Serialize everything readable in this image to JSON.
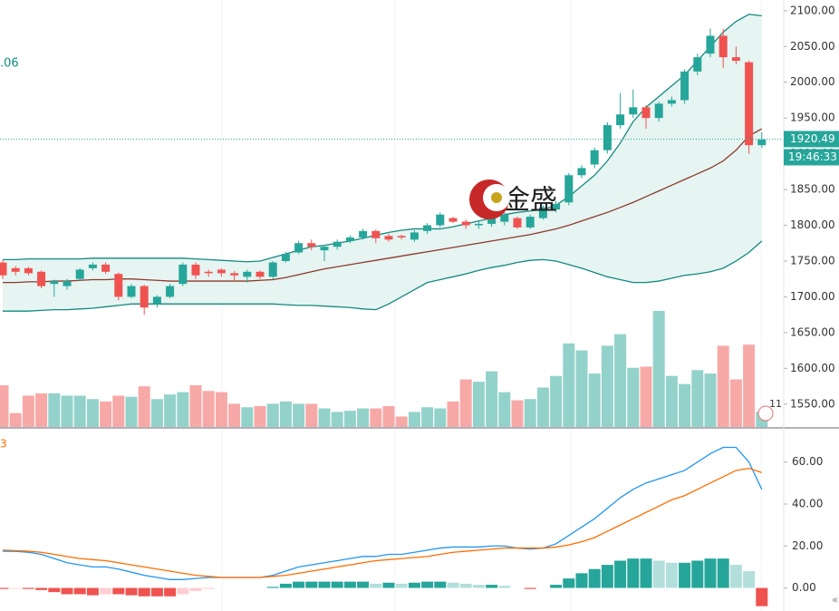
{
  "watermark": "金盛",
  "badge": "11",
  "chart_data": [
    {
      "type": "candlestick",
      "indicator_value": ".06",
      "ylim": [
        1518,
        2115
      ],
      "yticks": [
        {
          "value": 1550,
          "label": "1550.00"
        },
        {
          "value": 1600,
          "label": "1600.00"
        },
        {
          "value": 1650,
          "label": "1650.00"
        },
        {
          "value": 1700,
          "label": "1700.00"
        },
        {
          "value": 1750,
          "label": "1750.00"
        },
        {
          "value": 1800,
          "label": "1800.00"
        },
        {
          "value": 1850,
          "label": "1850.00"
        },
        {
          "value": 1900,
          "label": "1900.00"
        },
        {
          "value": 1950,
          "label": "1950.00"
        },
        {
          "value": 2000,
          "label": "2000.00"
        },
        {
          "value": 2050,
          "label": "2050.00"
        },
        {
          "value": 2100,
          "label": "2100.00"
        }
      ],
      "up_color": "#26a69a",
      "down_color": "#ef5350",
      "open": [
        1748,
        1740,
        1740,
        1735,
        1718,
        1715,
        1725,
        1740,
        1745,
        1732,
        1700,
        1715,
        1690,
        1700,
        1718,
        1745,
        1735,
        1738,
        1733,
        1728,
        1735,
        1728,
        1750,
        1762,
        1775,
        1765,
        1770,
        1778,
        1783,
        1792,
        1785,
        1785,
        1780,
        1792,
        1800,
        1810,
        1805,
        1800,
        1802,
        1805,
        1810,
        1797,
        1810,
        1822,
        1832,
        1870,
        1885,
        1905,
        1940,
        1955,
        1965,
        1950,
        1970,
        1975,
        2015,
        2040,
        2065,
        2035,
        2028,
        1912
      ],
      "high": [
        1752,
        1743,
        1742,
        1737,
        1724,
        1725,
        1740,
        1748,
        1748,
        1734,
        1718,
        1717,
        1702,
        1718,
        1748,
        1748,
        1738,
        1740,
        1736,
        1738,
        1737,
        1750,
        1763,
        1778,
        1780,
        1772,
        1780,
        1786,
        1795,
        1794,
        1788,
        1787,
        1793,
        1803,
        1818,
        1812,
        1808,
        1805,
        1813,
        1818,
        1812,
        1815,
        1828,
        1834,
        1873,
        1884,
        1909,
        1944,
        1985,
        1990,
        1968,
        1973,
        1980,
        2018,
        2040,
        2075,
        2075,
        2050,
        2030,
        1930
      ],
      "low": [
        1725,
        1730,
        1730,
        1712,
        1700,
        1710,
        1722,
        1737,
        1732,
        1695,
        1698,
        1675,
        1685,
        1698,
        1715,
        1725,
        1728,
        1728,
        1722,
        1720,
        1725,
        1725,
        1748,
        1760,
        1765,
        1750,
        1766,
        1775,
        1780,
        1775,
        1777,
        1780,
        1777,
        1788,
        1797,
        1803,
        1795,
        1795,
        1798,
        1800,
        1795,
        1795,
        1808,
        1818,
        1828,
        1866,
        1880,
        1900,
        1935,
        1950,
        1935,
        1945,
        1966,
        1970,
        2010,
        2035,
        2020,
        2025,
        1900,
        1908
      ],
      "close": [
        1730,
        1735,
        1733,
        1715,
        1722,
        1722,
        1738,
        1745,
        1735,
        1700,
        1715,
        1685,
        1700,
        1715,
        1745,
        1730,
        1733,
        1733,
        1730,
        1735,
        1728,
        1748,
        1760,
        1775,
        1770,
        1770,
        1777,
        1783,
        1792,
        1782,
        1780,
        1783,
        1790,
        1800,
        1815,
        1805,
        1800,
        1802,
        1810,
        1815,
        1797,
        1812,
        1825,
        1830,
        1870,
        1880,
        1905,
        1940,
        1955,
        1965,
        1950,
        1970,
        1975,
        2015,
        2035,
        2065,
        2035,
        2030,
        1912,
        1920
      ],
      "bands": {
        "band_color": "#138a80",
        "middle_color": "#8b3a2a",
        "fill": "#e6f4f2",
        "upper": [
          1752,
          1752,
          1753,
          1753,
          1753,
          1753,
          1753,
          1754,
          1754,
          1754,
          1754,
          1754,
          1754,
          1754,
          1754,
          1753,
          1752,
          1751,
          1750,
          1749,
          1750,
          1755,
          1760,
          1765,
          1770,
          1772,
          1775,
          1778,
          1782,
          1786,
          1790,
          1793,
          1795,
          1795,
          1795,
          1798,
          1802,
          1806,
          1810,
          1815,
          1818,
          1820,
          1822,
          1828,
          1840,
          1855,
          1870,
          1890,
          1915,
          1945,
          1965,
          1980,
          1995,
          2010,
          2030,
          2050,
          2070,
          2085,
          2095,
          2093
        ],
        "middle": [
          1720,
          1720,
          1721,
          1721,
          1722,
          1722,
          1723,
          1724,
          1724,
          1725,
          1725,
          1724,
          1723,
          1722,
          1722,
          1722,
          1722,
          1722,
          1722,
          1722,
          1723,
          1724,
          1727,
          1731,
          1735,
          1739,
          1742,
          1745,
          1748,
          1751,
          1754,
          1757,
          1760,
          1763,
          1766,
          1769,
          1772,
          1775,
          1778,
          1781,
          1784,
          1787,
          1791,
          1795,
          1800,
          1806,
          1812,
          1818,
          1825,
          1832,
          1840,
          1848,
          1856,
          1864,
          1872,
          1880,
          1890,
          1905,
          1925,
          1935
        ],
        "lower": [
          1680,
          1680,
          1680,
          1681,
          1682,
          1682,
          1683,
          1684,
          1686,
          1688,
          1690,
          1690,
          1690,
          1690,
          1690,
          1690,
          1690,
          1690,
          1690,
          1690,
          1690,
          1690,
          1689,
          1688,
          1688,
          1687,
          1686,
          1685,
          1683,
          1682,
          1690,
          1700,
          1710,
          1720,
          1724,
          1728,
          1732,
          1737,
          1741,
          1744,
          1748,
          1751,
          1752,
          1750,
          1745,
          1740,
          1734,
          1728,
          1724,
          1720,
          1720,
          1722,
          1726,
          1730,
          1732,
          1735,
          1740,
          1750,
          1762,
          1778
        ]
      },
      "volume": {
        "vlim": [
          0,
          100
        ],
        "up_color": "#93d2ca",
        "down_color": "#f7a9a7",
        "values": [
          36,
          12,
          27,
          29,
          29,
          27,
          27,
          24,
          22,
          27,
          26,
          35,
          24,
          28,
          30,
          36,
          31,
          30,
          20,
          17,
          18,
          20,
          22,
          20,
          20,
          16,
          13,
          14,
          16,
          16,
          18,
          9,
          13,
          17,
          16,
          22,
          41,
          39,
          48,
          30,
          23,
          24,
          34,
          44,
          72,
          66,
          46,
          70,
          80,
          51,
          52,
          100,
          44,
          37,
          49,
          46,
          70,
          41,
          71,
          13
        ]
      },
      "last_price": {
        "value": 1920.49,
        "label": "1920.49"
      },
      "countdown": "19:46:33"
    },
    {
      "type": "macd",
      "legend_text": "3",
      "ylim": [
        -11,
        75
      ],
      "yticks": [
        {
          "value": 0,
          "label": "0.00"
        },
        {
          "value": 20,
          "label": "20.00"
        },
        {
          "value": 40,
          "label": "40.00"
        },
        {
          "value": 60,
          "label": "60.00"
        }
      ],
      "series": [
        {
          "color": "#2196f3",
          "values": [
            17.5,
            17.4,
            17,
            16,
            14,
            12,
            11,
            10,
            10,
            9,
            7.5,
            6,
            5,
            4,
            4,
            4.5,
            5,
            5,
            5,
            5,
            5,
            6,
            8,
            10,
            11,
            12,
            13,
            14,
            15,
            15,
            16,
            16,
            17,
            18,
            19,
            19.5,
            19.5,
            19.5,
            20,
            20,
            19,
            18.5,
            19,
            21,
            25,
            29,
            33,
            38,
            43,
            47,
            50,
            52,
            54,
            56,
            60,
            64,
            67,
            67,
            60,
            47
          ]
        },
        {
          "color": "#ff6d00",
          "values": [
            18,
            17.8,
            17.5,
            17,
            16,
            15,
            14,
            13.5,
            13,
            12,
            11,
            10,
            9,
            8,
            7,
            6,
            5.5,
            5,
            5,
            5,
            5,
            5.5,
            6,
            7,
            8,
            9,
            10,
            11,
            12,
            13,
            13.5,
            14,
            14.5,
            15,
            16,
            17,
            17.5,
            18,
            18.5,
            19,
            19,
            19,
            19,
            19.5,
            20.5,
            22,
            24,
            27,
            30,
            33,
            36,
            39,
            42,
            44,
            47,
            50,
            53,
            56,
            57,
            55
          ]
        }
      ],
      "histogram": {
        "colors": [
          "#26a69a",
          "#b2dfdb",
          "#ef5350",
          "#ffcdd2"
        ],
        "values": [
          -0.5,
          -0.4,
          -0.5,
          -1,
          -2,
          -3,
          -3,
          -3.5,
          -3,
          -3,
          -3.5,
          -4,
          -4,
          -4,
          -3,
          -1.5,
          -0.5,
          0,
          0,
          0,
          0,
          0.5,
          2,
          3,
          3,
          3,
          3,
          3,
          3,
          2,
          2.5,
          2,
          2.5,
          3,
          3,
          2.5,
          2,
          1.5,
          1.5,
          1,
          0,
          -0.5,
          0,
          1.5,
          4.5,
          7,
          9,
          11,
          13,
          14,
          14,
          13,
          12,
          12,
          13,
          14,
          14,
          11,
          8,
          -8.7
        ]
      }
    }
  ]
}
